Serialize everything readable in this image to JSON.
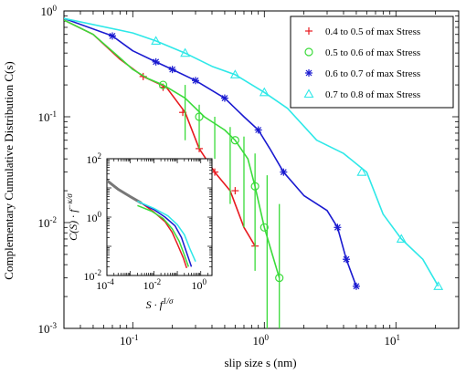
{
  "chart_data": {
    "type": "line",
    "xlabel": "slip size s (nm)",
    "ylabel": "Complementary Cumulative Distribution C(s)",
    "xscale": "log",
    "yscale": "log",
    "xlim": [
      0.03,
      30
    ],
    "ylim": [
      0.001,
      1
    ],
    "x_ticks": [
      {
        "v": 0.1,
        "b": "10",
        "e": "-1"
      },
      {
        "v": 1,
        "b": "10",
        "e": "0"
      },
      {
        "v": 10,
        "b": "10",
        "e": "1"
      }
    ],
    "y_ticks": [
      {
        "v": 0.001,
        "b": "10",
        "e": "-3"
      },
      {
        "v": 0.01,
        "b": "10",
        "e": "-2"
      },
      {
        "v": 0.1,
        "b": "10",
        "e": "-1"
      },
      {
        "v": 1,
        "b": "10",
        "e": "0"
      }
    ],
    "legend_position": "top-right",
    "series": [
      {
        "name": "0.4 to 0.5 of max Stress",
        "color": "#e8191f",
        "marker": "plus",
        "x": [
          0.03,
          0.05,
          0.08,
          0.12,
          0.18,
          0.25,
          0.32,
          0.42,
          0.55,
          0.7,
          0.85
        ],
        "y": [
          0.82,
          0.6,
          0.35,
          0.24,
          0.19,
          0.11,
          0.05,
          0.03,
          0.02,
          0.009,
          0.006
        ],
        "marker_x": [
          0.12,
          0.17,
          0.24,
          0.32,
          0.42,
          0.6,
          0.85
        ],
        "marker_y": [
          0.24,
          0.19,
          0.11,
          0.05,
          0.03,
          0.02,
          0.006
        ]
      },
      {
        "name": "0.5 to 0.6 of max Stress",
        "color": "#3adb3a",
        "marker": "circle",
        "x": [
          0.03,
          0.05,
          0.08,
          0.1,
          0.13,
          0.17,
          0.25,
          0.35,
          0.5,
          0.6,
          0.75,
          0.85,
          1.0,
          1.15,
          1.3
        ],
        "y": [
          0.82,
          0.6,
          0.36,
          0.28,
          0.23,
          0.2,
          0.15,
          0.1,
          0.075,
          0.06,
          0.04,
          0.022,
          0.009,
          0.005,
          0.003
        ],
        "marker_x": [
          0.17,
          0.32,
          0.6,
          0.85,
          1.0,
          1.3
        ],
        "marker_y": [
          0.2,
          0.1,
          0.06,
          0.022,
          0.009,
          0.003
        ],
        "error_bars": [
          {
            "x": 0.25,
            "low": 0.06,
            "high": 0.2
          },
          {
            "x": 0.32,
            "low": 0.05,
            "high": 0.13
          },
          {
            "x": 0.42,
            "low": 0.04,
            "high": 0.1
          },
          {
            "x": 0.55,
            "low": 0.015,
            "high": 0.08
          },
          {
            "x": 0.7,
            "low": 0.009,
            "high": 0.065
          },
          {
            "x": 0.85,
            "low": 0.0035,
            "high": 0.045
          },
          {
            "x": 1.05,
            "low": 0.0007,
            "high": 0.028
          },
          {
            "x": 1.3,
            "low": 0.001,
            "high": 0.015
          }
        ]
      },
      {
        "name": "0.6 to 0.7 of max Stress",
        "color": "#1a1ad0",
        "marker": "star",
        "x": [
          0.03,
          0.07,
          0.1,
          0.15,
          0.2,
          0.3,
          0.5,
          0.7,
          0.9,
          1.1,
          1.4,
          2.0,
          3.0,
          3.6,
          4.2,
          5.0
        ],
        "y": [
          0.85,
          0.58,
          0.42,
          0.33,
          0.28,
          0.22,
          0.15,
          0.1,
          0.075,
          0.05,
          0.03,
          0.018,
          0.013,
          0.009,
          0.0045,
          0.0025
        ],
        "marker_x": [
          0.07,
          0.15,
          0.2,
          0.3,
          0.5,
          0.9,
          1.4,
          3.6,
          4.2,
          5.0
        ],
        "marker_y": [
          0.58,
          0.33,
          0.28,
          0.22,
          0.15,
          0.075,
          0.03,
          0.009,
          0.0045,
          0.0025
        ]
      },
      {
        "name": "0.7 to 0.8 of max Stress",
        "color": "#2ee8e8",
        "marker": "triangle",
        "x": [
          0.03,
          0.1,
          0.15,
          0.25,
          0.4,
          0.6,
          1.0,
          1.5,
          2.5,
          4.0,
          6.0,
          8.0,
          11.0,
          16.0,
          21.0
        ],
        "y": [
          0.85,
          0.62,
          0.52,
          0.4,
          0.3,
          0.25,
          0.17,
          0.12,
          0.06,
          0.045,
          0.03,
          0.012,
          0.007,
          0.0045,
          0.0025
        ],
        "marker_x": [
          0.15,
          0.25,
          0.6,
          1.0,
          5.5,
          11.0,
          21.0
        ],
        "marker_y": [
          0.52,
          0.4,
          0.25,
          0.17,
          0.03,
          0.007,
          0.0025
        ]
      }
    ],
    "inset": {
      "xlabel_base": "S · f",
      "xlabel_sup": "1/σ",
      "ylabel_base": "C(S) · f",
      "ylabel_sup": "−κ/σ",
      "xlim": [
        0.0001,
        3
      ],
      "ylim": [
        0.01,
        100
      ],
      "x_ticks": [
        {
          "v": 0.0001,
          "b": "10",
          "e": "-4"
        },
        {
          "v": 0.01,
          "b": "10",
          "e": "-2"
        },
        {
          "v": 1,
          "b": "10",
          "e": "0"
        }
      ],
      "y_ticks": [
        {
          "v": 0.01,
          "b": "10",
          "e": "-2"
        },
        {
          "v": 1,
          "b": "10",
          "e": "0"
        },
        {
          "v": 100,
          "b": "10",
          "e": "2"
        }
      ],
      "series": [
        {
          "color": "#777777",
          "width": 3,
          "x": [
            0.0001,
            0.0003,
            0.001,
            0.003
          ],
          "y": [
            18,
            9,
            5,
            3
          ]
        },
        {
          "color": "#e8191f",
          "width": 1.5,
          "x": [
            0.003,
            0.01,
            0.03,
            0.06,
            0.1,
            0.18,
            0.25
          ],
          "y": [
            3,
            1.5,
            0.7,
            0.3,
            0.12,
            0.04,
            0.018
          ]
        },
        {
          "color": "#3adb3a",
          "width": 1.5,
          "x": [
            0.002,
            0.008,
            0.025,
            0.06,
            0.12,
            0.2,
            0.3
          ],
          "y": [
            2.5,
            1.6,
            0.9,
            0.4,
            0.15,
            0.05,
            0.02
          ]
        },
        {
          "color": "#1a1ad0",
          "width": 1.5,
          "x": [
            0.003,
            0.01,
            0.03,
            0.08,
            0.15,
            0.25,
            0.4
          ],
          "y": [
            3,
            1.8,
            1.0,
            0.5,
            0.2,
            0.06,
            0.02
          ]
        },
        {
          "color": "#2ee8e8",
          "width": 1.5,
          "x": [
            0.002,
            0.01,
            0.04,
            0.1,
            0.2,
            0.35,
            0.6
          ],
          "y": [
            3.5,
            2.0,
            1.1,
            0.55,
            0.25,
            0.08,
            0.03
          ]
        }
      ]
    }
  }
}
